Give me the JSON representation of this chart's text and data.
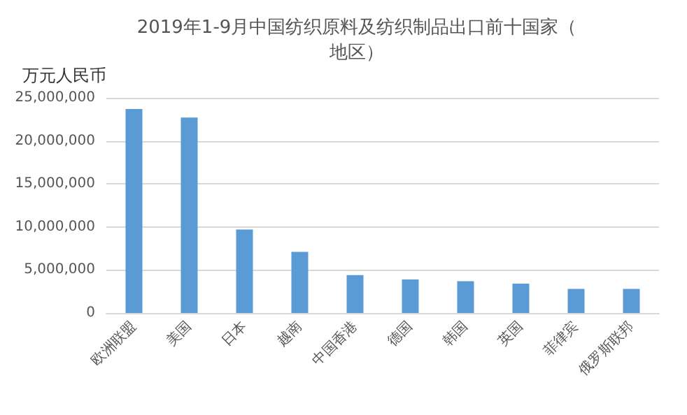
{
  "chart_data": {
    "type": "bar",
    "title": "2019年1-9月中国纺织原料及纺织制品出口前十国家（地区）",
    "ylabel": "万元人民币",
    "categories": [
      "欧洲联盟",
      "美国",
      "日本",
      "越南",
      "中国香港",
      "德国",
      "韩国",
      "英国",
      "菲律宾",
      "俄罗斯联邦"
    ],
    "values": [
      23700000,
      22700000,
      9700000,
      7100000,
      4400000,
      3900000,
      3700000,
      3400000,
      2800000,
      2800000
    ],
    "color": "#5b9bd5",
    "ylim": [
      0,
      25000000
    ],
    "yticks": [
      0,
      {
        "value": 5000000,
        "label": "5,000,000"
      },
      {
        "value": 10000000,
        "label": "10,000,000"
      },
      {
        "value": 15000000,
        "label": "15,000,000"
      },
      {
        "value": 20000000,
        "label": "20,000,000"
      },
      {
        "value": 25000000,
        "label": "25,000,000"
      }
    ],
    "grid": "y"
  }
}
